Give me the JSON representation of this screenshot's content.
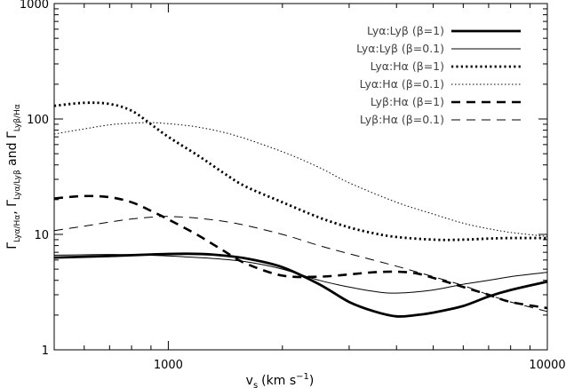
{
  "chart_data": {
    "type": "line",
    "title": "",
    "xlabel": "v_s (km s^-1)",
    "ylabel": "Γ_Lyα/Hα, Γ_Lyα/Lyβ and Γ_Lyβ/Hα",
    "xscale": "log",
    "yscale": "log",
    "xlim": [
      500,
      10000
    ],
    "ylim": [
      1,
      1000
    ],
    "x_tick_labels": [
      "1000",
      "10000"
    ],
    "y_tick_labels": [
      "1",
      "10",
      "100",
      "1000"
    ],
    "grid": false,
    "legend_position": "top-right",
    "series": [
      {
        "name": "Lyα:Lyβ (β=1)",
        "x": [
          500,
          700,
          900,
          1100,
          1300,
          1600,
          2000,
          2500,
          3000,
          3500,
          4000,
          4500,
          5000,
          6000,
          7000,
          8000,
          10000
        ],
        "values": [
          6.3,
          6.5,
          6.7,
          6.8,
          6.7,
          6.2,
          5.2,
          3.7,
          2.6,
          2.15,
          1.95,
          2.0,
          2.1,
          2.4,
          2.9,
          3.3,
          3.9
        ]
      },
      {
        "name": "Lyα:Lyβ (β=0.1)",
        "x": [
          500,
          700,
          900,
          1100,
          1300,
          1600,
          2000,
          2500,
          3000,
          3500,
          4000,
          5000,
          6000,
          7000,
          8000,
          10000
        ],
        "values": [
          6.6,
          6.7,
          6.6,
          6.4,
          6.2,
          5.8,
          5.0,
          4.0,
          3.5,
          3.2,
          3.1,
          3.3,
          3.7,
          4.0,
          4.3,
          4.7
        ]
      },
      {
        "name": "Lyα:Hα (β=1)",
        "x": [
          500,
          600,
          700,
          800,
          900,
          1000,
          1200,
          1400,
          1600,
          2000,
          2500,
          3000,
          3500,
          4000,
          5000,
          6000,
          7000,
          8000,
          10000
        ],
        "values": [
          130,
          138,
          135,
          118,
          90,
          70,
          48,
          34,
          26,
          19,
          14,
          11.5,
          10.2,
          9.5,
          9.0,
          9.0,
          9.2,
          9.3,
          9.3
        ]
      },
      {
        "name": "Lyα:Hα (β=0.1)",
        "x": [
          500,
          600,
          700,
          800,
          900,
          1000,
          1200,
          1500,
          2000,
          2500,
          3000,
          4000,
          5000,
          6000,
          7000,
          8000,
          10000
        ],
        "values": [
          74,
          82,
          89,
          92,
          93,
          91,
          85,
          72,
          52,
          38,
          28,
          19,
          15,
          12.5,
          11.2,
          10.4,
          9.6
        ]
      },
      {
        "name": "Lyβ:Hα (β=1)",
        "x": [
          500,
          600,
          700,
          800,
          900,
          1000,
          1200,
          1400,
          1600,
          2000,
          2500,
          3000,
          3500,
          4000,
          4500,
          5000,
          6000,
          7000,
          8000,
          10000
        ],
        "values": [
          20.5,
          21.5,
          21,
          19,
          16,
          13.5,
          9.8,
          7.2,
          5.6,
          4.4,
          4.3,
          4.5,
          4.7,
          4.75,
          4.6,
          4.2,
          3.5,
          3.0,
          2.6,
          2.3
        ]
      },
      {
        "name": "Lyβ:Hα (β=0.1)",
        "x": [
          500,
          600,
          700,
          800,
          900,
          1000,
          1200,
          1500,
          2000,
          2500,
          3000,
          4000,
          5000,
          6000,
          7000,
          8000,
          10000
        ],
        "values": [
          10.8,
          11.8,
          12.8,
          13.6,
          14.1,
          14.3,
          13.8,
          12.5,
          10.0,
          8.0,
          6.8,
          5.3,
          4.3,
          3.6,
          3.0,
          2.6,
          2.15
        ]
      }
    ]
  },
  "legend": {
    "entries": [
      {
        "label": "Lyα:Lyβ (β=1)",
        "stroke": "#000000",
        "width": 2.8,
        "dash": "none"
      },
      {
        "label": "Lyα:Lyβ (β=0.1)",
        "stroke": "#000000",
        "width": 1.0,
        "dash": "none"
      },
      {
        "label": "Lyα:Hα (β=1)",
        "stroke": "#000000",
        "width": 2.8,
        "dash": "2.2,3.2"
      },
      {
        "label": "Lyα:Hα (β=0.1)",
        "stroke": "#000000",
        "width": 1.0,
        "dash": "1.5,2.5"
      },
      {
        "label": "Lyβ:Hα (β=1)",
        "stroke": "#000000",
        "width": 2.6,
        "dash": "10,7"
      },
      {
        "label": "Lyβ:Hα (β=0.1)",
        "stroke": "#000000",
        "width": 1.0,
        "dash": "10,7"
      }
    ]
  },
  "axes": {
    "xlabel_main": "v",
    "xlabel_sub": "s",
    "xlabel_unit": "(km s",
    "xlabel_exp": "−1",
    "xlabel_close": ")",
    "ylabel_g1": "Γ",
    "ylabel_s1": "Lyα/Hα",
    "ylabel_sep1": ", ",
    "ylabel_g2": "Γ",
    "ylabel_s2": "Lyα/Lyβ",
    "ylabel_and": " and ",
    "ylabel_g3": "Γ",
    "ylabel_s3": "Lyβ/Hα"
  }
}
